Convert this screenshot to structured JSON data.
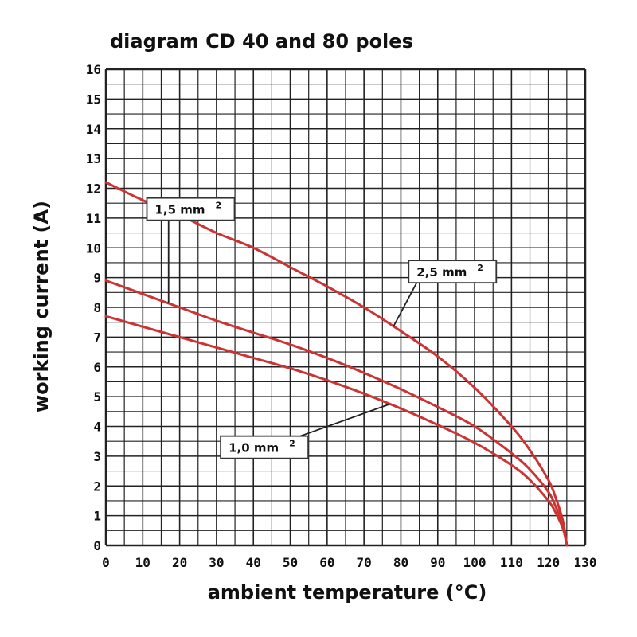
{
  "chart_data": {
    "type": "line",
    "title": "diagram CD 40 and 80 poles",
    "xlabel": "ambient temperature (°C)",
    "ylabel": "working current (A)",
    "xlim": [
      0,
      130
    ],
    "ylim": [
      0,
      16
    ],
    "x_ticks": [
      "0",
      "10",
      "20",
      "30",
      "40",
      "50",
      "60",
      "70",
      "80",
      "90",
      "100",
      "110",
      "120",
      "130"
    ],
    "y_ticks": [
      "0",
      "1",
      "2",
      "3",
      "4",
      "5",
      "6",
      "7",
      "8",
      "9",
      "10",
      "11",
      "12",
      "13",
      "14",
      "15",
      "16"
    ],
    "grid": true,
    "colors": {
      "curve": "#cc3333",
      "curve_light": "#e89090",
      "grid": "#222222",
      "leader": "#222222"
    },
    "series": [
      {
        "name": "2,5 mm",
        "sup": "2",
        "x": [
          0,
          10,
          20,
          30,
          40,
          50,
          60,
          70,
          80,
          90,
          100,
          110,
          115,
          120,
          122,
          124,
          125
        ],
        "y": [
          12.2,
          11.6,
          11.1,
          10.5,
          10.0,
          9.35,
          8.7,
          8.0,
          7.2,
          6.35,
          5.3,
          4.0,
          3.2,
          2.2,
          1.6,
          0.8,
          0
        ]
      },
      {
        "name": "1,5 mm",
        "sup": "2",
        "x": [
          0,
          10,
          20,
          30,
          40,
          50,
          60,
          70,
          80,
          90,
          100,
          110,
          115,
          120,
          122,
          124,
          125
        ],
        "y": [
          8.9,
          8.45,
          8.0,
          7.55,
          7.15,
          6.75,
          6.3,
          5.8,
          5.25,
          4.65,
          4.0,
          3.1,
          2.55,
          1.8,
          1.3,
          0.7,
          0
        ]
      },
      {
        "name": "1,0 mm",
        "sup": "2",
        "x": [
          0,
          10,
          20,
          30,
          40,
          50,
          60,
          70,
          80,
          90,
          100,
          110,
          115,
          120,
          122,
          124,
          125
        ],
        "y": [
          7.7,
          7.35,
          7.0,
          6.65,
          6.3,
          5.95,
          5.55,
          5.1,
          4.6,
          4.05,
          3.45,
          2.7,
          2.2,
          1.5,
          1.1,
          0.55,
          0
        ]
      }
    ],
    "callouts": [
      {
        "text": "1,5 mm",
        "sup": "2",
        "series": 1,
        "at_x": 17,
        "box_x": 23,
        "box_y": 11.3
      },
      {
        "text": "2,5 mm",
        "sup": "2",
        "series": 0,
        "at_x": 78,
        "box_x": 94,
        "box_y": 9.2
      },
      {
        "text": "1,0 mm",
        "sup": "2",
        "series": 2,
        "at_x": 77,
        "box_x": 43,
        "box_y": 3.3
      }
    ]
  }
}
